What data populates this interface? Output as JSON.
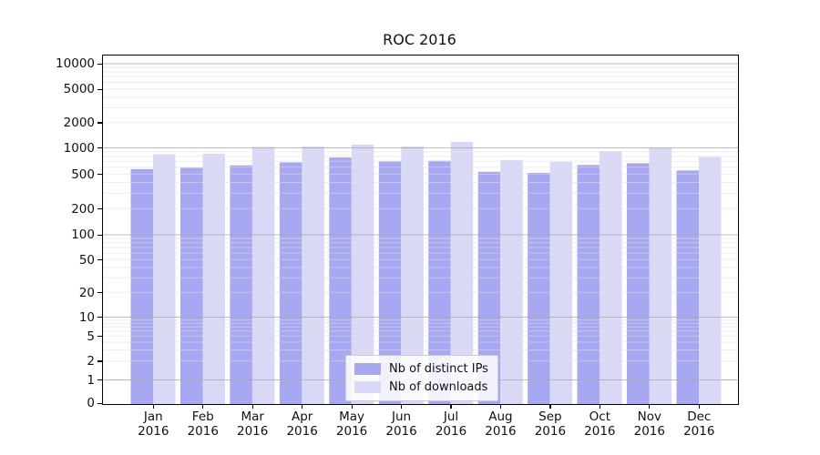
{
  "title": "ROC 2016",
  "chart_data": {
    "type": "bar",
    "title": "ROC 2016",
    "categories": [
      "Jan 2016",
      "Feb 2016",
      "Mar 2016",
      "Apr 2016",
      "May 2016",
      "Jun 2016",
      "Jul 2016",
      "Aug 2016",
      "Sep 2016",
      "Oct 2016",
      "Nov 2016",
      "Dec 2016"
    ],
    "series": [
      {
        "name": "Nb of distinct IPs",
        "color": "#a7a7f2",
        "values": [
          570,
          590,
          630,
          680,
          775,
          700,
          710,
          530,
          515,
          635,
          665,
          550
        ]
      },
      {
        "name": "Nb of downloads",
        "color": "#d9d9f7",
        "values": [
          845,
          855,
          1030,
          1040,
          1090,
          1040,
          1180,
          725,
          690,
          920,
          1005,
          785
        ]
      }
    ],
    "xlabel": "",
    "ylabel": "",
    "yscale": "symlog",
    "y_ticks": [
      10000,
      5000,
      2000,
      1000,
      500,
      200,
      100,
      50,
      20,
      10,
      5,
      2,
      1,
      0
    ],
    "ylim": [
      0,
      12500
    ],
    "grid": "on",
    "legend_position": "lower center inside"
  },
  "colors": {
    "major_grid": "#aaaaaa",
    "minor_grid": "#e0e0e0",
    "spine": "#000000",
    "background": "#ffffff"
  }
}
